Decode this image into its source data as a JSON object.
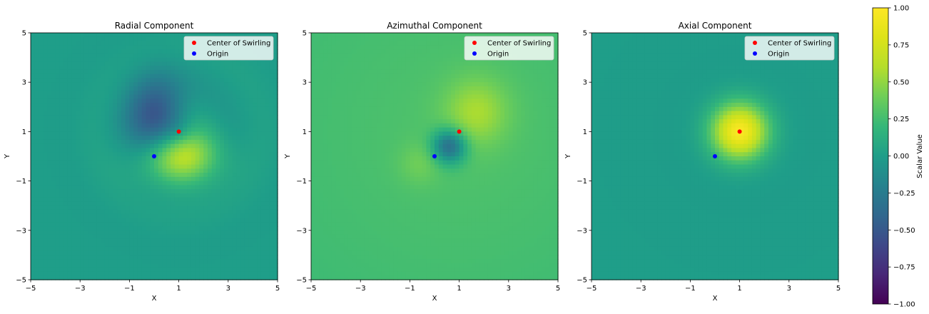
{
  "chart_data": [
    {
      "type": "heatmap",
      "title": "Radial Component",
      "xlabel": "X",
      "ylabel": "Y",
      "xlim": [
        -5,
        5
      ],
      "ylim": [
        -5,
        5
      ],
      "xticks": [
        "−5",
        "−3",
        "−1",
        "1",
        "3",
        "5"
      ],
      "yticks": [
        "−5",
        "−3",
        "−1",
        "1",
        "3",
        "5"
      ],
      "field": "radial",
      "points": [
        {
          "name": "Center of Swirling",
          "x": 1,
          "y": 1,
          "color": "#ff0000"
        },
        {
          "name": "Origin",
          "x": 0,
          "y": 0,
          "color": "#0000ff"
        }
      ],
      "legend": [
        "Center of Swirling",
        "Origin"
      ],
      "legend_position": "upper right"
    },
    {
      "type": "heatmap",
      "title": "Azimuthal Component",
      "xlabel": "X",
      "ylabel": "Y",
      "xlim": [
        -5,
        5
      ],
      "ylim": [
        -5,
        5
      ],
      "xticks": [
        "−5",
        "−3",
        "−1",
        "1",
        "3",
        "5"
      ],
      "yticks": [
        "−5",
        "−3",
        "−1",
        "1",
        "3",
        "5"
      ],
      "field": "azimuthal",
      "points": [
        {
          "name": "Center of Swirling",
          "x": 1,
          "y": 1,
          "color": "#ff0000"
        },
        {
          "name": "Origin",
          "x": 0,
          "y": 0,
          "color": "#0000ff"
        }
      ],
      "legend": [
        "Center of Swirling",
        "Origin"
      ],
      "legend_position": "upper right"
    },
    {
      "type": "heatmap",
      "title": "Axial Component",
      "xlabel": "X",
      "ylabel": "Y",
      "xlim": [
        -5,
        5
      ],
      "ylim": [
        -5,
        5
      ],
      "xticks": [
        "−5",
        "−3",
        "−1",
        "1",
        "3",
        "5"
      ],
      "yticks": [
        "−5",
        "−3",
        "−1",
        "1",
        "3",
        "5"
      ],
      "field": "axial",
      "points": [
        {
          "name": "Center of Swirling",
          "x": 1,
          "y": 1,
          "color": "#ff0000"
        },
        {
          "name": "Origin",
          "x": 0,
          "y": 0,
          "color": "#0000ff"
        }
      ],
      "legend": [
        "Center of Swirling",
        "Origin"
      ],
      "legend_position": "upper right"
    }
  ],
  "colorbar": {
    "label": "Scalar Value",
    "colormap": "viridis",
    "range": [
      -1,
      1
    ],
    "ticks": [
      "1.00",
      "0.75",
      "0.50",
      "0.25",
      "0.00",
      "−0.25",
      "−0.50",
      "−0.75",
      "−1.00"
    ]
  }
}
